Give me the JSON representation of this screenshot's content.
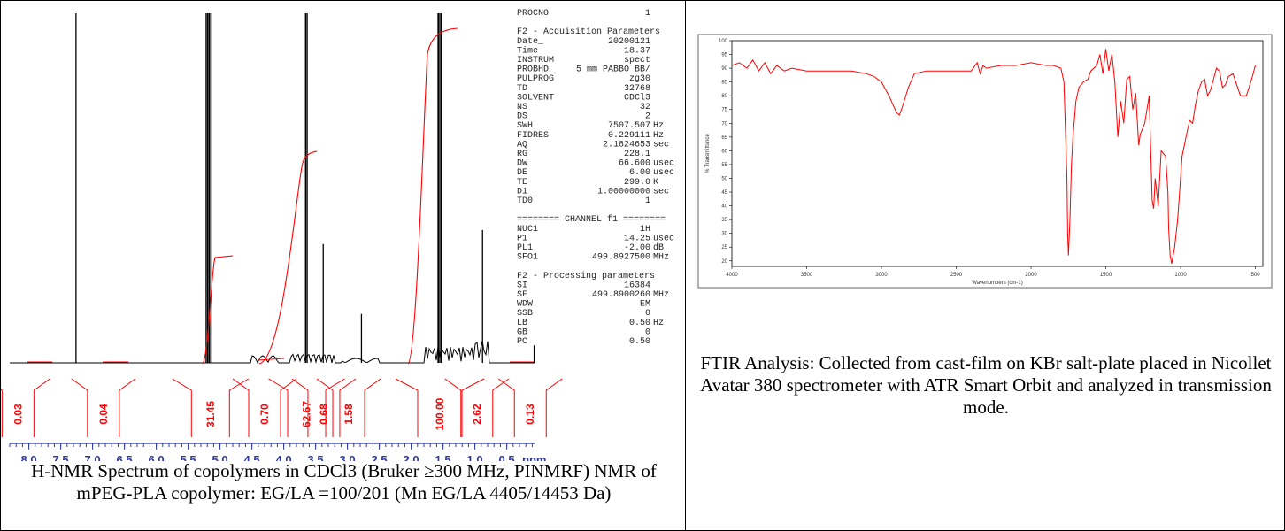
{
  "colors": {
    "nmr_trace": "#000000",
    "integral": "#ff0000",
    "ftir_trace": "#ff0000",
    "tick_axis": "#2f3aa8"
  },
  "captions": {
    "nmr": "H-NMR Spectrum of copolymers in CDCl3 (Bruker ≥300 MHz, PINMRF) NMR of mPEG-PLA copolymer: EG/LA =100/201 (Mn EG/LA 4405/14453 Da)",
    "ftir": "FTIR Analysis: Collected from cast-film on KBr salt-plate placed in Nicollet Avatar 380 spectrometer with ATR Smart Orbit and analyzed in transmission mode."
  },
  "parameters": [
    {
      "k": "PROCNO",
      "v": "1",
      "u": ""
    },
    {
      "k": "",
      "v": "",
      "u": ""
    },
    {
      "k": "F2 - Acquisition Parameters",
      "v": "",
      "u": "",
      "header": true
    },
    {
      "k": "Date_",
      "v": "20200121",
      "u": ""
    },
    {
      "k": "Time",
      "v": "18.37",
      "u": ""
    },
    {
      "k": "INSTRUM",
      "v": "spect",
      "u": ""
    },
    {
      "k": "PROBHD",
      "v": "5 mm PABBO BB/",
      "u": ""
    },
    {
      "k": "PULPROG",
      "v": "zg30",
      "u": ""
    },
    {
      "k": "TD",
      "v": "32768",
      "u": ""
    },
    {
      "k": "SOLVENT",
      "v": "CDCl3",
      "u": ""
    },
    {
      "k": "NS",
      "v": "32",
      "u": ""
    },
    {
      "k": "DS",
      "v": "2",
      "u": ""
    },
    {
      "k": "SWH",
      "v": "7507.507",
      "u": "Hz"
    },
    {
      "k": "FIDRES",
      "v": "0.229111",
      "u": "Hz"
    },
    {
      "k": "AQ",
      "v": "2.1824653",
      "u": "sec"
    },
    {
      "k": "RG",
      "v": "228.1",
      "u": ""
    },
    {
      "k": "DW",
      "v": "66.600",
      "u": "usec"
    },
    {
      "k": "DE",
      "v": "6.00",
      "u": "usec"
    },
    {
      "k": "TE",
      "v": "299.0",
      "u": "K"
    },
    {
      "k": "D1",
      "v": "1.00000000",
      "u": "sec"
    },
    {
      "k": "TD0",
      "v": "1",
      "u": ""
    },
    {
      "k": "",
      "v": "",
      "u": ""
    },
    {
      "k": "======== CHANNEL f1 ========",
      "v": "",
      "u": "",
      "header": true
    },
    {
      "k": "NUC1",
      "v": "1H",
      "u": ""
    },
    {
      "k": "P1",
      "v": "14.25",
      "u": "usec"
    },
    {
      "k": "PL1",
      "v": "-2.00",
      "u": "dB"
    },
    {
      "k": "SFO1",
      "v": "499.8927500",
      "u": "MHz"
    },
    {
      "k": "",
      "v": "",
      "u": ""
    },
    {
      "k": "F2 - Processing parameters",
      "v": "",
      "u": "",
      "header": true
    },
    {
      "k": "SI",
      "v": "16384",
      "u": ""
    },
    {
      "k": "SF",
      "v": "499.8900260",
      "u": "MHz"
    },
    {
      "k": "WDW",
      "v": "EM",
      "u": ""
    },
    {
      "k": "SSB",
      "v": "0",
      "u": ""
    },
    {
      "k": "LB",
      "v": "0.50",
      "u": "Hz"
    },
    {
      "k": "GB",
      "v": "0",
      "u": ""
    },
    {
      "k": "PC",
      "v": "0.50",
      "u": ""
    }
  ],
  "chart_data": [
    {
      "type": "line",
      "xlabel": "ppm",
      "xlim": [
        8.3,
        0.05
      ],
      "ticks": [
        "8.0",
        "7.5",
        "7.0",
        "6.5",
        "6.0",
        "5.5",
        "5.0",
        "4.5",
        "4.0",
        "3.5",
        "3.0",
        "2.5",
        "2.0",
        "1.5",
        "1.0",
        "0.5"
      ],
      "tick_values": [
        8.0,
        7.5,
        7.0,
        6.5,
        6.0,
        5.5,
        5.0,
        4.5,
        4.0,
        3.5,
        3.0,
        2.5,
        2.0,
        1.5,
        1.0,
        0.5
      ],
      "peaks": [
        {
          "ppm": 7.26,
          "height": 1.0
        },
        {
          "ppm": 5.2,
          "height": 1.0
        },
        {
          "ppm": 5.17,
          "height": 1.0
        },
        {
          "ppm": 3.65,
          "height": 1.0
        },
        {
          "ppm": 3.38,
          "height": 0.34
        },
        {
          "ppm": 2.78,
          "height": 0.14
        },
        {
          "ppm": 1.57,
          "height": 1.0
        },
        {
          "ppm": 1.53,
          "height": 1.0
        },
        {
          "ppm": 0.88,
          "height": 0.38
        },
        {
          "ppm": 0.07,
          "height": 0.05
        }
      ],
      "integrals": [
        {
          "label": "0.03",
          "ppm": 8.17
        },
        {
          "label": "0.04",
          "ppm": 6.83
        },
        {
          "label": "31.45",
          "ppm": 5.15
        },
        {
          "label": "0.70",
          "ppm": 4.3
        },
        {
          "label": "62.67",
          "ppm": 3.64
        },
        {
          "label": "0.68",
          "ppm": 3.37
        },
        {
          "label": "1.58",
          "ppm": 2.98
        },
        {
          "label": "100.00",
          "ppm": 1.55
        },
        {
          "label": "2.62",
          "ppm": 0.97
        },
        {
          "label": "0.13",
          "ppm": 0.13
        }
      ]
    },
    {
      "type": "line",
      "xlabel": "Wavenumbers (cm-1)",
      "ylabel": "% Transmittance",
      "xlim": [
        4000,
        450
      ],
      "ylim": [
        18,
        100
      ],
      "xticks": [
        4000,
        3500,
        3000,
        2500,
        2000,
        1500,
        1000,
        500
      ],
      "yticks": [
        20,
        25,
        30,
        35,
        40,
        45,
        50,
        55,
        60,
        65,
        70,
        75,
        80,
        85,
        90,
        95,
        100
      ],
      "series": [
        {
          "x": [
            4000,
            3950,
            3900,
            3860,
            3820,
            3780,
            3740,
            3700,
            3650,
            3600,
            3500,
            3400,
            3300,
            3200,
            3100,
            3050,
            3000,
            2950,
            2900,
            2880,
            2860,
            2820,
            2780,
            2700,
            2600,
            2500,
            2400,
            2360,
            2340,
            2320,
            2300,
            2200,
            2100,
            2000,
            1900,
            1850,
            1800,
            1780,
            1760,
            1755,
            1750,
            1740,
            1730,
            1720,
            1700,
            1680,
            1650,
            1620,
            1600,
            1560,
            1540,
            1520,
            1500,
            1480,
            1460,
            1455,
            1440,
            1420,
            1400,
            1380,
            1360,
            1340,
            1320,
            1300,
            1280,
            1270,
            1240,
            1210,
            1190,
            1180,
            1170,
            1150,
            1130,
            1100,
            1085,
            1080,
            1070,
            1060,
            1040,
            1020,
            990,
            960,
            940,
            920,
            900,
            880,
            860,
            840,
            820,
            800,
            780,
            760,
            740,
            720,
            700,
            680,
            650,
            600,
            560,
            520,
            500
          ],
          "y": [
            91,
            92,
            90,
            93,
            89,
            92,
            88,
            91,
            89,
            90,
            89,
            89,
            89,
            89,
            88,
            87,
            85,
            80,
            74,
            73,
            76,
            83,
            88,
            89,
            89,
            89,
            89,
            92,
            88,
            91,
            90,
            91,
            91,
            92,
            91,
            91,
            90,
            85,
            50,
            30,
            22,
            35,
            55,
            65,
            78,
            83,
            85,
            86,
            89,
            91,
            95,
            88,
            97,
            89,
            95,
            93,
            85,
            65,
            78,
            70,
            86,
            87,
            75,
            81,
            62,
            66,
            70,
            80,
            42,
            39,
            50,
            40,
            60,
            58,
            45,
            32,
            22,
            19,
            25,
            35,
            58,
            66,
            71,
            70,
            77,
            82,
            85,
            86,
            80,
            82,
            86,
            90,
            89,
            83,
            84,
            87,
            88,
            80,
            80,
            87,
            91
          ]
        }
      ]
    }
  ]
}
